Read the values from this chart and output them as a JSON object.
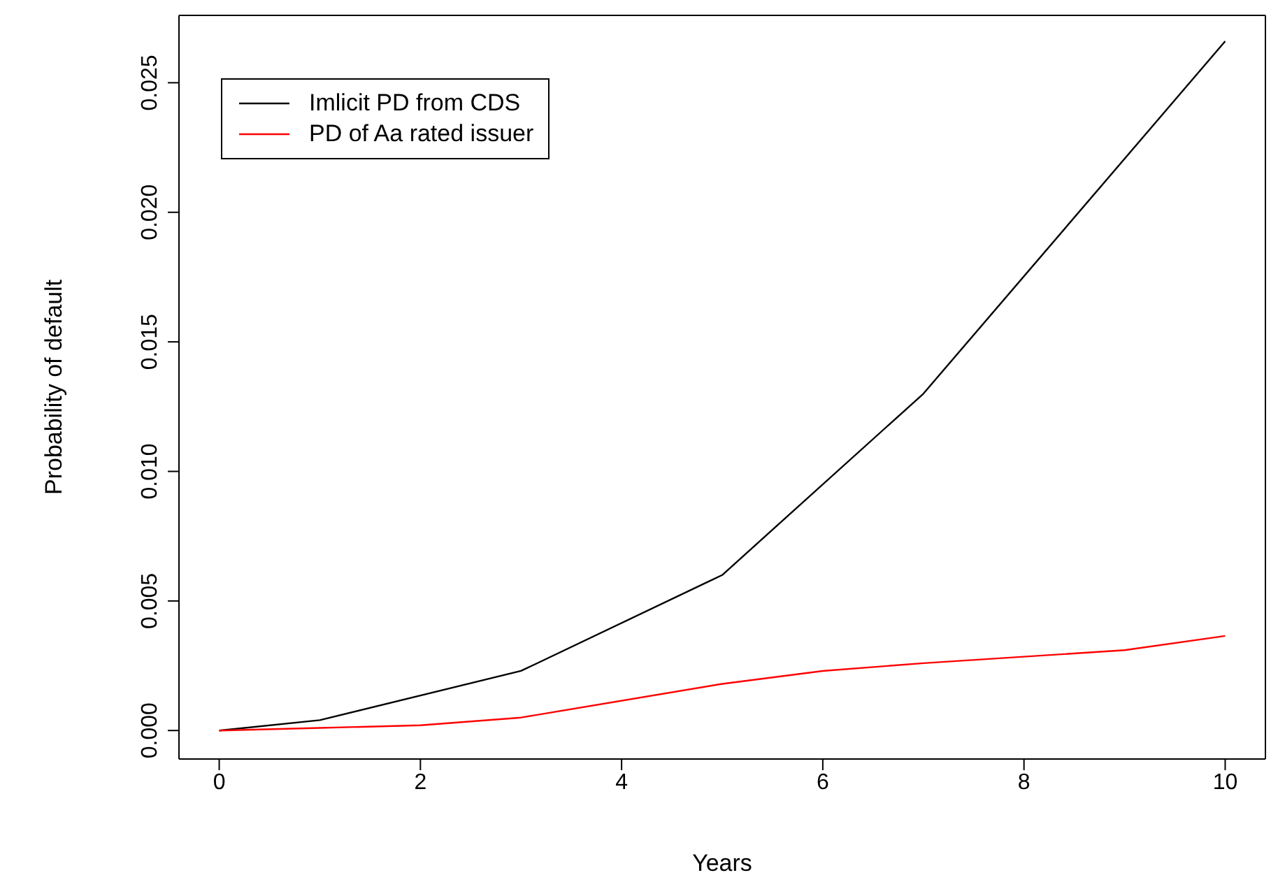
{
  "chart_data": {
    "type": "line",
    "xlabel": "Years",
    "ylabel": "Probability of default",
    "xlim": [
      -0.4,
      10.4
    ],
    "ylim": [
      -0.0011,
      0.0276
    ],
    "xticks": [
      0,
      2,
      4,
      6,
      8,
      10
    ],
    "yticks": [
      {
        "value": 0,
        "label": "0.000"
      },
      {
        "value": 0.005,
        "label": "0.005"
      },
      {
        "value": 0.01,
        "label": "0.010"
      },
      {
        "value": 0.015,
        "label": "0.015"
      },
      {
        "value": 0.02,
        "label": "0.020"
      },
      {
        "value": 0.025,
        "label": "0.025"
      }
    ],
    "legend": "top left",
    "grid": false,
    "series": [
      {
        "name": "Imlicit PD from CDS",
        "color": "#000000",
        "x": [
          0,
          1,
          3,
          5,
          7,
          10
        ],
        "values": [
          0,
          0.0004,
          0.0023,
          0.006,
          0.013,
          0.0266
        ]
      },
      {
        "name": "PD of Aa rated issuer",
        "color": "#ff0000",
        "x": [
          0,
          1,
          2,
          3,
          5,
          6,
          7,
          9,
          10
        ],
        "values": [
          0,
          0.0001,
          0.0002,
          0.0005,
          0.0018,
          0.0023,
          0.0026,
          0.0031,
          0.00365
        ]
      }
    ]
  }
}
